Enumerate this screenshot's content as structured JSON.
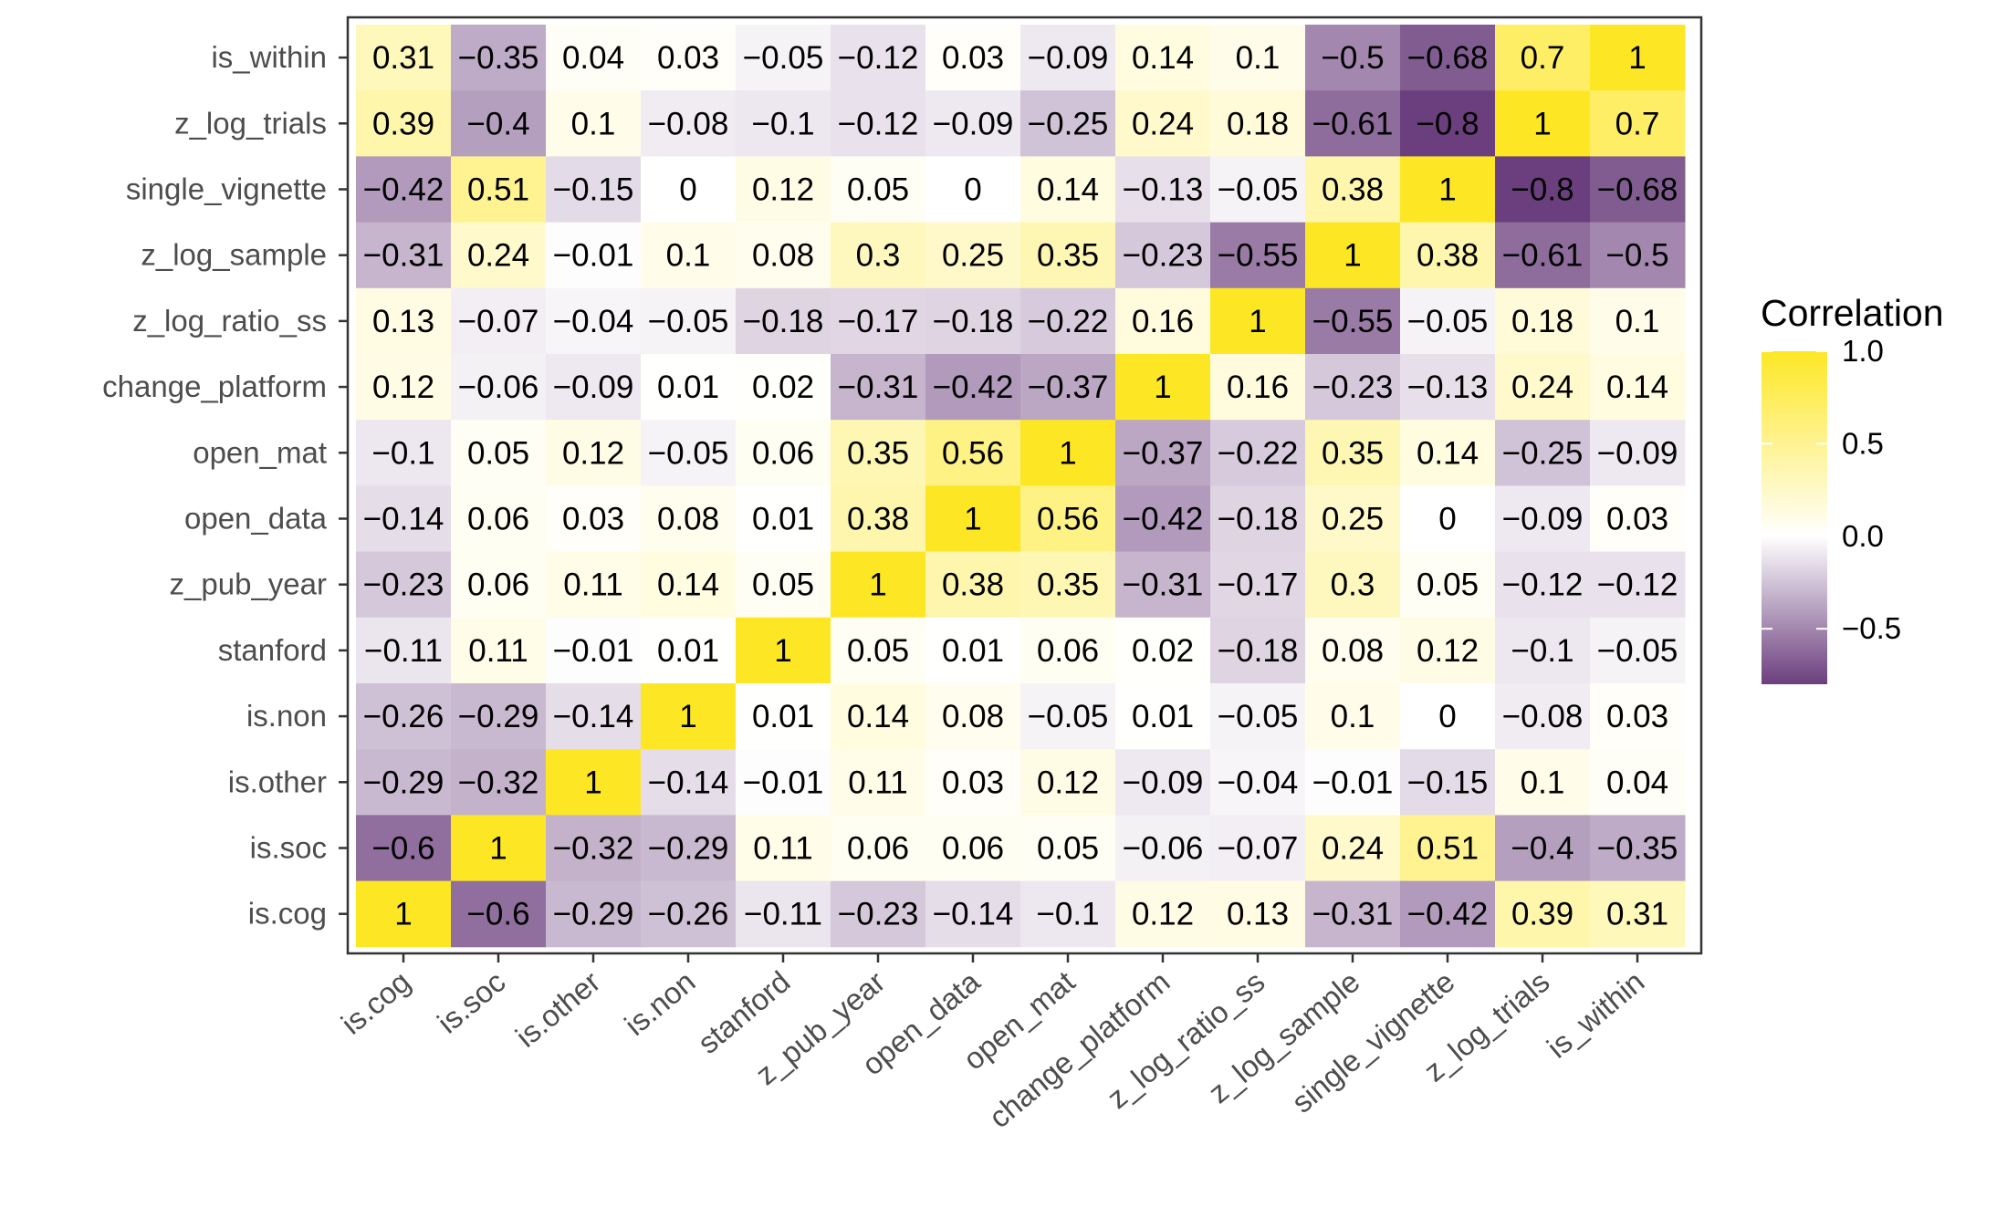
{
  "chart_data": {
    "type": "heatmap",
    "title": "",
    "xlabel": "",
    "ylabel": "",
    "x_categories": [
      "is.cog",
      "is.soc",
      "is.other",
      "is.non",
      "stanford",
      "z_pub_year",
      "open_data",
      "open_mat",
      "change_platform",
      "z_log_ratio_ss",
      "z_log_sample",
      "single_vignette",
      "z_log_trials",
      "is_within"
    ],
    "y_categories_top_to_bottom": [
      "is_within",
      "z_log_trials",
      "single_vignette",
      "z_log_sample",
      "z_log_ratio_ss",
      "change_platform",
      "open_mat",
      "open_data",
      "z_pub_year",
      "stanford",
      "is.non",
      "is.other",
      "is.soc",
      "is.cog"
    ],
    "values": [
      [
        "0.31",
        "−0.35",
        "0.04",
        "0.03",
        "−0.05",
        "−0.12",
        "0.03",
        "−0.09",
        "0.14",
        "0.1",
        "−0.5",
        "−0.68",
        "0.7",
        "1"
      ],
      [
        "0.39",
        "−0.4",
        "0.1",
        "−0.08",
        "−0.1",
        "−0.12",
        "−0.09",
        "−0.25",
        "0.24",
        "0.18",
        "−0.61",
        "−0.8",
        "1",
        "0.7"
      ],
      [
        "−0.42",
        "0.51",
        "−0.15",
        "0",
        "0.12",
        "0.05",
        "0",
        "0.14",
        "−0.13",
        "−0.05",
        "0.38",
        "1",
        "−0.8",
        "−0.68"
      ],
      [
        "−0.31",
        "0.24",
        "−0.01",
        "0.1",
        "0.08",
        "0.3",
        "0.25",
        "0.35",
        "−0.23",
        "−0.55",
        "1",
        "0.38",
        "−0.61",
        "−0.5"
      ],
      [
        "0.13",
        "−0.07",
        "−0.04",
        "−0.05",
        "−0.18",
        "−0.17",
        "−0.18",
        "−0.22",
        "0.16",
        "1",
        "−0.55",
        "−0.05",
        "0.18",
        "0.1"
      ],
      [
        "0.12",
        "−0.06",
        "−0.09",
        "0.01",
        "0.02",
        "−0.31",
        "−0.42",
        "−0.37",
        "1",
        "0.16",
        "−0.23",
        "−0.13",
        "0.24",
        "0.14"
      ],
      [
        "−0.1",
        "0.05",
        "0.12",
        "−0.05",
        "0.06",
        "0.35",
        "0.56",
        "1",
        "−0.37",
        "−0.22",
        "0.35",
        "0.14",
        "−0.25",
        "−0.09"
      ],
      [
        "−0.14",
        "0.06",
        "0.03",
        "0.08",
        "0.01",
        "0.38",
        "1",
        "0.56",
        "−0.42",
        "−0.18",
        "0.25",
        "0",
        "−0.09",
        "0.03"
      ],
      [
        "−0.23",
        "0.06",
        "0.11",
        "0.14",
        "0.05",
        "1",
        "0.38",
        "0.35",
        "−0.31",
        "−0.17",
        "0.3",
        "0.05",
        "−0.12",
        "−0.12"
      ],
      [
        "−0.11",
        "0.11",
        "−0.01",
        "0.01",
        "1",
        "0.05",
        "0.01",
        "0.06",
        "0.02",
        "−0.18",
        "0.08",
        "0.12",
        "−0.1",
        "−0.05"
      ],
      [
        "−0.26",
        "−0.29",
        "−0.14",
        "1",
        "0.01",
        "0.14",
        "0.08",
        "−0.05",
        "0.01",
        "−0.05",
        "0.1",
        "0",
        "−0.08",
        "0.03"
      ],
      [
        "−0.29",
        "−0.32",
        "1",
        "−0.14",
        "−0.01",
        "0.11",
        "0.03",
        "0.12",
        "−0.09",
        "−0.04",
        "−0.01",
        "−0.15",
        "0.1",
        "0.04"
      ],
      [
        "−0.6",
        "1",
        "−0.32",
        "−0.29",
        "0.11",
        "0.06",
        "0.06",
        "0.05",
        "−0.06",
        "−0.07",
        "0.24",
        "0.51",
        "−0.4",
        "−0.35"
      ],
      [
        "1",
        "−0.6",
        "−0.29",
        "−0.26",
        "−0.11",
        "−0.23",
        "−0.14",
        "−0.1",
        "0.12",
        "0.13",
        "−0.31",
        "−0.42",
        "0.39",
        "0.31"
      ]
    ],
    "legend": {
      "title": "Correlation",
      "range": [
        -0.8,
        1.0
      ],
      "ticks": [
        1.0,
        0.5,
        0.0,
        -0.5
      ],
      "tick_labels": [
        "1.0",
        "0.5",
        "0.0",
        "−0.5"
      ],
      "placement": "right"
    },
    "colors": {
      "high": "#FDE725",
      "mid": "#FFFFFF",
      "low": "#6B3F7E",
      "panel_border": "#333333",
      "tick_label": "#4d4d4d"
    }
  }
}
